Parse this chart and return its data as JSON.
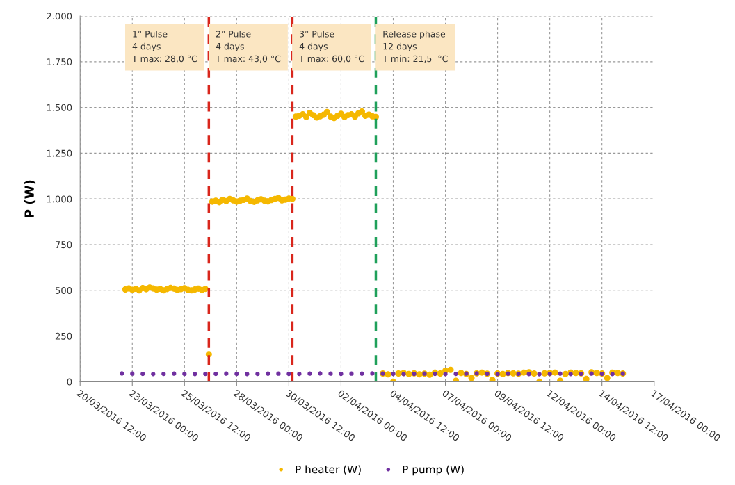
{
  "chart_data": {
    "type": "scatter",
    "ylabel": "P (W)",
    "xlim": [
      "2016-03-20T12:00",
      "2016-04-17T00:00"
    ],
    "xticks": [
      {
        "value": "2016-03-20T12:00",
        "label": "20/03/2016 12:00"
      },
      {
        "value": "2016-03-23T00:00",
        "label": "23/03/2016 00:00"
      },
      {
        "value": "2016-03-25T12:00",
        "label": "25/03/2016 12:00"
      },
      {
        "value": "2016-03-28T00:00",
        "label": "28/03/2016 00:00"
      },
      {
        "value": "2016-03-30T12:00",
        "label": "30/03/2016 12:00"
      },
      {
        "value": "2016-04-02T00:00",
        "label": "02/04/2016 00:00"
      },
      {
        "value": "2016-04-04T12:00",
        "label": "04/04/2016 12:00"
      },
      {
        "value": "2016-04-07T00:00",
        "label": "07/04/2016 00:00"
      },
      {
        "value": "2016-04-09T12:00",
        "label": "09/04/2016 12:00"
      },
      {
        "value": "2016-04-12T00:00",
        "label": "12/04/2016 00:00"
      },
      {
        "value": "2016-04-14T12:00",
        "label": "14/04/2016 12:00"
      },
      {
        "value": "2016-04-17T00:00",
        "label": "17/04/2016 00:00"
      }
    ],
    "ylim": [
      0,
      2000
    ],
    "yticks": [
      0,
      250,
      500,
      750,
      {
        "value": 1000,
        "label": "1.000"
      },
      {
        "value": 1250,
        "label": "1.250"
      },
      {
        "value": 1500,
        "label": "1.500"
      },
      {
        "value": 1750,
        "label": "1.750"
      },
      {
        "value": 2000,
        "label": "2.000"
      }
    ],
    "grid": true,
    "legend": "bottom",
    "marker": "circle",
    "series": [
      {
        "name": "P heater (W)",
        "color": "#f5b800",
        "x": [
          "2016-03-22T16:00",
          "2016-03-22T20:00",
          "2016-03-23T00:00",
          "2016-03-23T04:00",
          "2016-03-23T08:00",
          "2016-03-23T12:00",
          "2016-03-23T16:00",
          "2016-03-23T20:00",
          "2016-03-24T00:00",
          "2016-03-24T04:00",
          "2016-03-24T08:00",
          "2016-03-24T12:00",
          "2016-03-24T16:00",
          "2016-03-24T20:00",
          "2016-03-25T00:00",
          "2016-03-25T04:00",
          "2016-03-25T08:00",
          "2016-03-25T12:00",
          "2016-03-25T16:00",
          "2016-03-25T20:00",
          "2016-03-26T00:00",
          "2016-03-26T04:00",
          "2016-03-26T08:00",
          "2016-03-26T12:00",
          "2016-03-26T16:00",
          "2016-03-26T20:00",
          "2016-03-27T00:00",
          "2016-03-27T04:00",
          "2016-03-27T08:00",
          "2016-03-27T12:00",
          "2016-03-27T16:00",
          "2016-03-27T20:00",
          "2016-03-28T00:00",
          "2016-03-28T04:00",
          "2016-03-28T08:00",
          "2016-03-28T12:00",
          "2016-03-28T16:00",
          "2016-03-28T20:00",
          "2016-03-29T00:00",
          "2016-03-29T04:00",
          "2016-03-29T08:00",
          "2016-03-29T12:00",
          "2016-03-29T16:00",
          "2016-03-29T20:00",
          "2016-03-30T00:00",
          "2016-03-30T04:00",
          "2016-03-30T08:00",
          "2016-03-30T12:00",
          "2016-03-30T16:00",
          "2016-03-30T20:00",
          "2016-03-31T00:00",
          "2016-03-31T04:00",
          "2016-03-31T08:00",
          "2016-03-31T12:00",
          "2016-03-31T16:00",
          "2016-03-31T20:00",
          "2016-04-01T00:00",
          "2016-04-01T04:00",
          "2016-04-01T08:00",
          "2016-04-01T12:00",
          "2016-04-01T16:00",
          "2016-04-01T20:00",
          "2016-04-02T00:00",
          "2016-04-02T04:00",
          "2016-04-02T08:00",
          "2016-04-02T12:00",
          "2016-04-02T16:00",
          "2016-04-02T20:00",
          "2016-04-03T00:00",
          "2016-04-03T04:00",
          "2016-04-03T08:00",
          "2016-04-03T12:00",
          "2016-04-03T16:00",
          "2016-04-04T00:00",
          "2016-04-04T06:00",
          "2016-04-04T12:00",
          "2016-04-04T18:00",
          "2016-04-05T00:00",
          "2016-04-05T06:00",
          "2016-04-05T12:00",
          "2016-04-05T18:00",
          "2016-04-06T00:00",
          "2016-04-06T06:00",
          "2016-04-06T12:00",
          "2016-04-06T18:00",
          "2016-04-07T00:00",
          "2016-04-07T06:00",
          "2016-04-07T12:00",
          "2016-04-07T18:00",
          "2016-04-08T00:00",
          "2016-04-08T06:00",
          "2016-04-08T12:00",
          "2016-04-08T18:00",
          "2016-04-09T00:00",
          "2016-04-09T06:00",
          "2016-04-09T12:00",
          "2016-04-09T18:00",
          "2016-04-10T00:00",
          "2016-04-10T06:00",
          "2016-04-10T12:00",
          "2016-04-10T18:00",
          "2016-04-11T00:00",
          "2016-04-11T06:00",
          "2016-04-11T12:00",
          "2016-04-11T18:00",
          "2016-04-12T00:00",
          "2016-04-12T06:00",
          "2016-04-12T12:00",
          "2016-04-12T18:00",
          "2016-04-13T00:00",
          "2016-04-13T06:00",
          "2016-04-13T12:00",
          "2016-04-13T18:00",
          "2016-04-14T00:00",
          "2016-04-14T06:00",
          "2016-04-14T12:00",
          "2016-04-14T18:00",
          "2016-04-15T00:00",
          "2016-04-15T06:00",
          "2016-04-15T12:00"
        ],
        "values": [
          505,
          510,
          503,
          508,
          500,
          512,
          506,
          515,
          510,
          504,
          508,
          500,
          507,
          513,
          509,
          502,
          506,
          511,
          503,
          500,
          505,
          509,
          502,
          508,
          150,
          985,
          990,
          982,
          995,
          988,
          1000,
          992,
          985,
          990,
          995,
          1002,
          988,
          984,
          992,
          998,
          990,
          986,
          994,
          1000,
          1005,
          992,
          996,
          1002,
          1000,
          1450,
          1455,
          1462,
          1448,
          1470,
          1458,
          1445,
          1452,
          1460,
          1475,
          1450,
          1442,
          1455,
          1465,
          1448,
          1458,
          1462,
          1450,
          1468,
          1478,
          1455,
          1460,
          1452,
          1448,
          45,
          40,
          0,
          45,
          48,
          42,
          46,
          40,
          44,
          38,
          50,
          45,
          60,
          65,
          5,
          48,
          42,
          20,
          46,
          50,
          44,
          10,
          45,
          42,
          48,
          46,
          44,
          50,
          52,
          45,
          0,
          46,
          48,
          50,
          5,
          42,
          50,
          48,
          46,
          15,
          52,
          48,
          45,
          20,
          50,
          48,
          45
        ]
      },
      {
        "name": "P pump (W)",
        "color": "#7030a0",
        "x": [
          "2016-03-22T12:00",
          "2016-03-23T00:00",
          "2016-03-23T12:00",
          "2016-03-24T00:00",
          "2016-03-24T12:00",
          "2016-03-25T00:00",
          "2016-03-25T12:00",
          "2016-03-26T00:00",
          "2016-03-26T12:00",
          "2016-03-27T00:00",
          "2016-03-27T12:00",
          "2016-03-28T00:00",
          "2016-03-28T12:00",
          "2016-03-29T00:00",
          "2016-03-29T12:00",
          "2016-03-30T00:00",
          "2016-03-30T12:00",
          "2016-03-31T00:00",
          "2016-03-31T12:00",
          "2016-04-01T00:00",
          "2016-04-01T12:00",
          "2016-04-02T00:00",
          "2016-04-02T12:00",
          "2016-04-03T00:00",
          "2016-04-03T12:00",
          "2016-04-04T00:00",
          "2016-04-04T12:00",
          "2016-04-05T00:00",
          "2016-04-05T12:00",
          "2016-04-06T00:00",
          "2016-04-06T12:00",
          "2016-04-07T00:00",
          "2016-04-07T12:00",
          "2016-04-08T00:00",
          "2016-04-08T12:00",
          "2016-04-09T00:00",
          "2016-04-09T12:00",
          "2016-04-10T00:00",
          "2016-04-10T12:00",
          "2016-04-11T00:00",
          "2016-04-11T12:00",
          "2016-04-12T00:00",
          "2016-04-12T12:00",
          "2016-04-13T00:00",
          "2016-04-13T12:00",
          "2016-04-14T00:00",
          "2016-04-14T12:00",
          "2016-04-15T00:00",
          "2016-04-15T12:00"
        ],
        "values": [
          45,
          44,
          43,
          42,
          43,
          44,
          43,
          42,
          43,
          43,
          44,
          43,
          42,
          43,
          44,
          44,
          43,
          43,
          44,
          45,
          44,
          43,
          44,
          44,
          45,
          44,
          43,
          42,
          43,
          44,
          43,
          42,
          43,
          44,
          45,
          43,
          42,
          44,
          43,
          42,
          41,
          43,
          44,
          42,
          43,
          44,
          43,
          42,
          44
        ]
      }
    ],
    "ref_lines": [
      {
        "axis": "x",
        "value": "2016-03-26T16:00",
        "color": "#d9261c",
        "line_style": "dashed"
      },
      {
        "axis": "x",
        "value": "2016-03-30T16:00",
        "color": "#d9261c",
        "line_style": "dashed"
      },
      {
        "axis": "x",
        "value": "2016-04-03T16:00",
        "color": "#1fa05a",
        "line_style": "dashed"
      }
    ],
    "annotations": [
      "1° Pulse\n4 days\nT max: 28,0 °C",
      "2° Pulse\n4 days\nT max: 43,0 °C",
      "3° Pulse\n4 days\nT max: 60,0 °C",
      "Release phase\n12 days\nT min: 21,5  °C"
    ]
  }
}
